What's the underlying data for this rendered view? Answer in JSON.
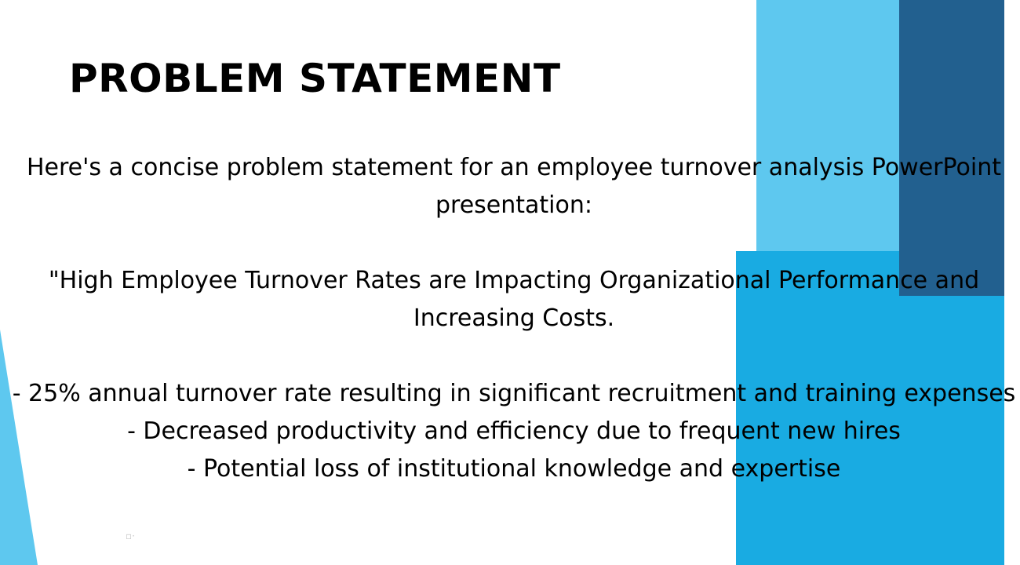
{
  "slide": {
    "title": "PROBLEM STATEMENT",
    "intro": "Here's a concise problem statement for an employee turnover analysis PowerPoint presentation:",
    "statement": "\"High Employee Turnover Rates are Impacting Organizational Performance and Increasing Costs.",
    "bullets": [
      "- 25% annual turnover rate resulting in significant recruitment and training expenses",
      "- Decreased productivity and efficiency due to frequent new hires",
      "- Potential loss of institutional knowledge and expertise"
    ]
  },
  "colors": {
    "light_blue": "#5ec8ef",
    "dark_blue": "#22608f",
    "mid_blue": "#19abe2",
    "text": "#000000",
    "background": "#ffffff"
  }
}
